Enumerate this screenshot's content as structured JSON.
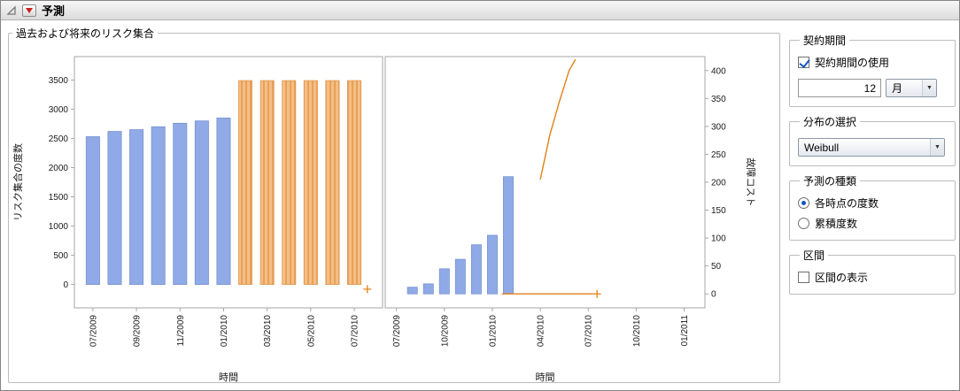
{
  "header": {
    "title": "予測"
  },
  "risk_group": {
    "title": "過去および将来のリスク集合"
  },
  "colors": {
    "observed_bar": "#8FAAE6",
    "observed_bar_edge": "#7590CE",
    "forecast_bar": "#F4BE86",
    "forecast_bar_stripe": "#E9A158",
    "forecast_bar_edge": "#DD9549",
    "forecast_line": "#E08119",
    "frame": "#A6A6A6",
    "tick_text": "#1a1a1a"
  },
  "chart_data": [
    {
      "type": "bar",
      "title": "",
      "ylabel": "リスク集合の度数",
      "xlabel": "時間",
      "y_side": "left",
      "ylim": [
        -400,
        3900
      ],
      "yticks": [
        0,
        500,
        1000,
        1500,
        2000,
        2500,
        3000,
        3500
      ],
      "xlim": [
        -0.85,
        13.3
      ],
      "xticks": [
        {
          "i": 0,
          "label": "07/2009"
        },
        {
          "i": 2,
          "label": "09/2009"
        },
        {
          "i": 4,
          "label": "11/2009"
        },
        {
          "i": 6,
          "label": "01/2010"
        },
        {
          "i": 8,
          "label": "03/2010"
        },
        {
          "i": 10,
          "label": "05/2010"
        },
        {
          "i": 12,
          "label": "07/2010"
        }
      ],
      "bars": [
        {
          "name": "observed-risk-set-counts",
          "style": "observed",
          "start": 0,
          "values": [
            2530,
            2620,
            2650,
            2700,
            2760,
            2800,
            2850
          ]
        },
        {
          "name": "forecast-risk-set-counts",
          "style": "forecast",
          "start": 7,
          "values": [
            3490,
            3490,
            3490,
            3490,
            3490,
            3490
          ]
        }
      ],
      "lines": [],
      "markers": [
        {
          "i": 12.6,
          "v": -80
        }
      ]
    },
    {
      "type": "bar+line",
      "title": "",
      "ylabel": "故障コスト",
      "xlabel": "時間",
      "y_side": "right",
      "ylim": [
        -25,
        425
      ],
      "yticks": [
        0,
        50,
        100,
        150,
        200,
        250,
        300,
        350,
        400
      ],
      "xlim": [
        -0.7,
        19.3
      ],
      "xticks": [
        {
          "i": 0,
          "label": "07/2009"
        },
        {
          "i": 3,
          "label": "10/2009"
        },
        {
          "i": 6,
          "label": "01/2010"
        },
        {
          "i": 9,
          "label": "04/2010"
        },
        {
          "i": 12,
          "label": "07/2010"
        },
        {
          "i": 15,
          "label": "10/2010"
        },
        {
          "i": 18,
          "label": "01/2011"
        }
      ],
      "bars": [
        {
          "name": "observed-failure-cost",
          "style": "observed",
          "start": 1,
          "values": [
            12,
            18,
            45,
            62,
            88,
            105,
            210
          ]
        }
      ],
      "lines": [
        {
          "name": "forecast-cost-line",
          "points": [
            [
              9.0,
              205
            ],
            [
              9.6,
              285
            ],
            [
              10.2,
              345
            ],
            [
              10.8,
              400
            ],
            [
              11.2,
              420
            ]
          ]
        },
        {
          "name": "forecast-baseline",
          "points": [
            [
              6.6,
              0
            ],
            [
              12.3,
              0
            ]
          ]
        }
      ],
      "markers": [
        {
          "i": 12.55,
          "v": 0
        }
      ]
    }
  ],
  "controls": {
    "contract": {
      "legend": "契約期間",
      "use_label": "契約期間の使用",
      "use_checked": true,
      "length_value": "12",
      "unit_value": "月"
    },
    "distribution": {
      "legend": "分布の選択",
      "selected": "Weibull"
    },
    "forecast_type": {
      "legend": "予測の種類",
      "options": [
        {
          "label": "各時点の度数",
          "selected": true
        },
        {
          "label": "累積度数",
          "selected": false
        }
      ]
    },
    "interval": {
      "legend": "区間",
      "show_label": "区間の表示",
      "show_checked": false
    }
  }
}
